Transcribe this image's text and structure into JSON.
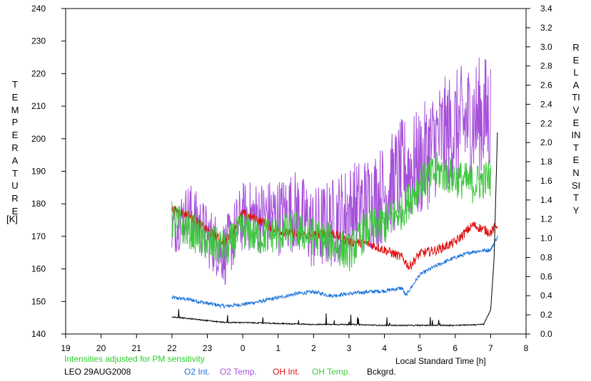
{
  "chart_data": {
    "type": "line",
    "xlabel": "Local Standard Time [h]",
    "ylabel_left": "TEMPERATURE",
    "ylabel_left_unit": "[K]",
    "ylabel_right": "RELATIVE INTENSITY",
    "note": "Intensities adjusted for PM sensitivity",
    "site_date": "LEO 29AUG2008",
    "x_ticks": [
      "19",
      "20",
      "21",
      "22",
      "23",
      "0",
      "1",
      "2",
      "3",
      "4",
      "5",
      "6",
      "7",
      "8"
    ],
    "y_left_ticks": [
      "140",
      "150",
      "160",
      "170",
      "180",
      "190",
      "200",
      "210",
      "220",
      "230",
      "240"
    ],
    "y_right_ticks": [
      "0.0",
      "0.2",
      "0.4",
      "0.6",
      "0.8",
      "1.0",
      "1.2",
      "1.4",
      "1.6",
      "1.8",
      "2.0",
      "2.2",
      "2.4",
      "2.6",
      "2.8",
      "3.0",
      "3.2",
      "3.4"
    ],
    "x_range_hours_after_19": [
      0,
      13
    ],
    "y_left_range": [
      140,
      240
    ],
    "y_right_range": [
      0,
      3.4
    ],
    "series": [
      {
        "name": "O2 Int.",
        "color": "#1a73d9",
        "axis": "right",
        "x": [
          22.0,
          22.5,
          23.0,
          23.5,
          24.0,
          24.5,
          25.0,
          25.5,
          26.0,
          26.5,
          27.0,
          27.5,
          28.0,
          28.5,
          28.6,
          29.0,
          29.5,
          30.0,
          30.5,
          31.0,
          31.2
        ],
        "y": [
          0.38,
          0.36,
          0.32,
          0.29,
          0.31,
          0.34,
          0.38,
          0.42,
          0.44,
          0.4,
          0.42,
          0.44,
          0.45,
          0.48,
          0.4,
          0.62,
          0.72,
          0.8,
          0.86,
          0.88,
          1.02
        ]
      },
      {
        "name": "O2 Temp.",
        "color": "#a64fd9",
        "axis": "left",
        "x": [
          22.0,
          22.5,
          23.0,
          23.5,
          24.0,
          24.5,
          25.0,
          25.5,
          26.0,
          26.5,
          27.0,
          27.5,
          28.0,
          28.5,
          29.0,
          29.5,
          30.0,
          30.5,
          31.0
        ],
        "y": [
          172,
          178,
          170,
          165,
          176,
          176,
          176,
          178,
          172,
          174,
          178,
          180,
          183,
          190,
          192,
          200,
          203,
          206,
          207
        ]
      },
      {
        "name": "OH Int.",
        "color": "#e01010",
        "axis": "right",
        "x": [
          22.0,
          22.5,
          23.0,
          23.5,
          24.0,
          24.5,
          25.0,
          25.5,
          26.0,
          26.5,
          27.0,
          27.5,
          28.0,
          28.5,
          28.7,
          29.0,
          29.5,
          30.0,
          30.5,
          31.0,
          31.2
        ],
        "y": [
          1.3,
          1.24,
          1.08,
          0.95,
          1.26,
          1.18,
          1.08,
          1.04,
          1.03,
          1.06,
          0.96,
          0.95,
          0.88,
          0.8,
          0.7,
          0.84,
          0.88,
          0.96,
          1.14,
          1.06,
          1.15
        ]
      },
      {
        "name": "OH Temp.",
        "color": "#3ec83e",
        "axis": "left",
        "x": [
          22.0,
          22.5,
          23.0,
          23.5,
          24.0,
          24.5,
          25.0,
          25.5,
          26.0,
          26.5,
          27.0,
          27.5,
          28.0,
          28.5,
          29.0,
          29.5,
          30.0,
          30.5,
          31.0
        ],
        "y": [
          175,
          172,
          168,
          166,
          172,
          170,
          171,
          172,
          170,
          168,
          165,
          172,
          174,
          178,
          186,
          190,
          188,
          186,
          188
        ]
      },
      {
        "name": "Bckgrd.",
        "color": "#000000",
        "axis": "right",
        "x": [
          22.0,
          22.5,
          23.0,
          23.5,
          24.0,
          25.0,
          26.0,
          27.0,
          28.0,
          29.0,
          30.0,
          30.8,
          31.0,
          31.1,
          31.2
        ],
        "y": [
          0.18,
          0.16,
          0.14,
          0.12,
          0.12,
          0.11,
          0.1,
          0.1,
          0.09,
          0.09,
          0.09,
          0.1,
          0.25,
          0.8,
          2.22
        ]
      }
    ]
  }
}
